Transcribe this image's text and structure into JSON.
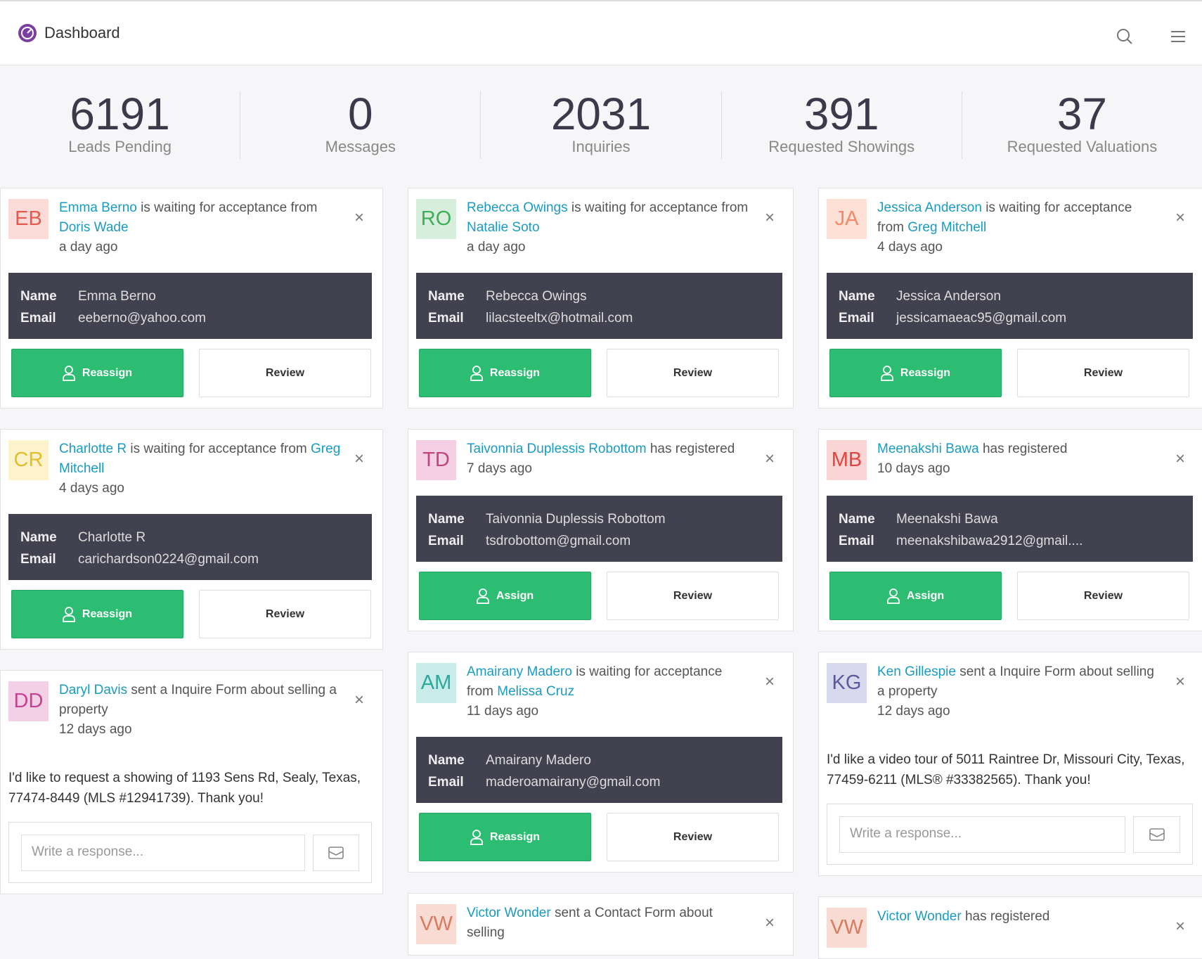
{
  "header": {
    "title": "Dashboard"
  },
  "stats": [
    {
      "value": 6191,
      "label": "Leads Pending"
    },
    {
      "value": 0,
      "label": "Messages"
    },
    {
      "value": 2031,
      "label": "Inquiries"
    },
    {
      "value": 391,
      "label": "Requested Showings"
    },
    {
      "value": 37,
      "label": "Requested Valuations"
    }
  ],
  "labels": {
    "name": "Name",
    "email": "Email",
    "review": "Review",
    "placeholder": "Write a response..."
  },
  "columns": [
    [
      {
        "initials": "EB",
        "avatar_bg": "#fadbd8",
        "avatar_fg": "#e55a4e",
        "actor": "Emma Berno",
        "action": "is waiting for acceptance from",
        "target": "Doris Wade",
        "time": "a day ago",
        "name": "Emma Berno",
        "email": "eeberno@yahoo.com",
        "button": "Reassign"
      },
      {
        "initials": "CR",
        "avatar_bg": "#fcf3cc",
        "avatar_fg": "#e3bd2c",
        "actor": "Charlotte R",
        "action": "is waiting for acceptance from",
        "target": "Greg Mitchell",
        "time": "4 days ago",
        "name": "Charlotte R",
        "email": "carichardson0224@gmail.com",
        "button": "Reassign"
      },
      {
        "initials": "DD",
        "avatar_bg": "#f3d0e6",
        "avatar_fg": "#c4438f",
        "actor": "Daryl Davis",
        "action": "sent a Inquire Form about selling a property",
        "time": "12 days ago",
        "message": "I'd like to request a showing of 1193 Sens Rd, Sealy, Texas, 77474-8449 (MLS #12941739). Thank you!"
      }
    ],
    [
      {
        "initials": "RO",
        "avatar_bg": "#d6eedb",
        "avatar_fg": "#3cae5a",
        "actor": "Rebecca Owings",
        "action": "is waiting for acceptance from",
        "target": "Natalie Soto",
        "time": "a day ago",
        "name": "Rebecca Owings",
        "email": "lilacsteeltx@hotmail.com",
        "button": "Reassign"
      },
      {
        "initials": "TD",
        "avatar_bg": "#f5d0e4",
        "avatar_fg": "#c2447e",
        "actor": "Taivonnia Duplessis Robottom",
        "action": "has registered",
        "time": "7 days ago",
        "name": "Taivonnia Duplessis Robottom",
        "email": "tsdrobottom@gmail.com",
        "button": "Assign"
      },
      {
        "initials": "AM",
        "avatar_bg": "#c9ecea",
        "avatar_fg": "#2aa89c",
        "actor": "Amairany Madero",
        "action": "is waiting for acceptance from",
        "target": "Melissa Cruz",
        "time": "11 days ago",
        "name": "Amairany Madero",
        "email": "maderoamairany@gmail.com",
        "button": "Reassign"
      },
      {
        "initials": "VW",
        "avatar_bg": "#f8dcd4",
        "avatar_fg": "#d87a5e",
        "actor": "Victor Wonder",
        "action": "sent a Contact Form about selling"
      }
    ],
    [
      {
        "initials": "JA",
        "avatar_bg": "#fde0d6",
        "avatar_fg": "#f08a6a",
        "actor": "Jessica Anderson",
        "action": "is waiting for acceptance from",
        "target": "Greg Mitchell",
        "time": "4 days ago",
        "name": "Jessica Anderson",
        "email": "jessicamaeac95@gmail.com",
        "button": "Reassign"
      },
      {
        "initials": "MB",
        "avatar_bg": "#fbd5d5",
        "avatar_fg": "#e0453f",
        "actor": "Meenakshi Bawa",
        "action": "has registered",
        "time": "10 days ago",
        "name": "Meenakshi Bawa",
        "email": "meenakshibawa2912@gmail....",
        "button": "Assign"
      },
      {
        "initials": "KG",
        "avatar_bg": "#d9d9ee",
        "avatar_fg": "#5a5a9c",
        "actor": "Ken Gillespie",
        "action": "sent a Inquire Form about selling a property",
        "time": "12 days ago",
        "message": "I'd like a video tour of 5011 Raintree Dr, Missouri City, Texas, 77459-6211 (MLS® #33382565). Thank you!"
      },
      {
        "initials": "VW",
        "avatar_bg": "#f8dcd4",
        "avatar_fg": "#d87a5e",
        "actor": "Victor Wonder",
        "action": "has registered"
      }
    ]
  ]
}
